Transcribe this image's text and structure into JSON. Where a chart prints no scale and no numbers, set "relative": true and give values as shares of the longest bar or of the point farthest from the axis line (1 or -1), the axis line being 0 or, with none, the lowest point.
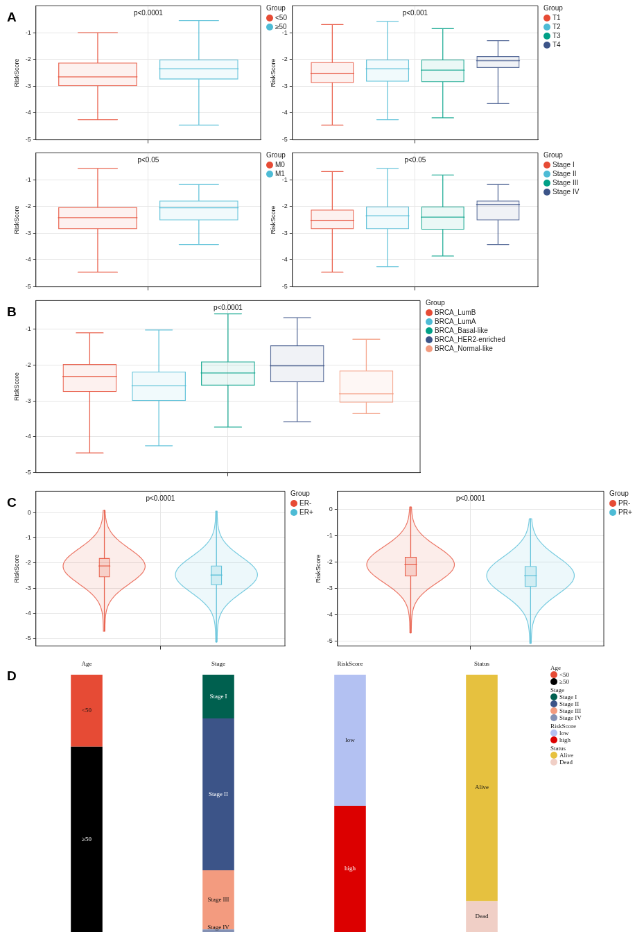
{
  "chart_data": [
    {
      "type": "box",
      "title": "p<0.0001",
      "ylabel": "RiskScore",
      "legend_title": "Group",
      "legend": "top right",
      "grid": true,
      "tick_labels": "y",
      "annotations": [
        "A"
      ],
      "categories": [
        null
      ],
      "ylim": [
        -5,
        0
      ],
      "yticks": [
        -5,
        -4,
        -3,
        -2,
        -1
      ],
      "series": [
        {
          "name": "<50",
          "color": "#e64b35",
          "boxes": [
            {
              "low": -4.25,
              "q1": -3.0,
              "median": -2.65,
              "q3": -2.12,
              "high": -1.0
            }
          ]
        },
        {
          "name": "≥50",
          "color": "#4dbbd5",
          "boxes": [
            {
              "low": -4.45,
              "q1": -2.75,
              "median": -2.35,
              "q3": -2.0,
              "high": -0.55
            }
          ]
        }
      ]
    },
    {
      "type": "box",
      "title": "p<0.001",
      "ylabel": "RiskScore",
      "legend_title": "Group",
      "legend": "top right",
      "grid": true,
      "tick_labels": "y",
      "categories": [
        null
      ],
      "ylim": [
        -5,
        0
      ],
      "yticks": [
        -5,
        -4,
        -3,
        -2,
        -1
      ],
      "series": [
        {
          "name": "T1",
          "color": "#e64b35",
          "boxes": [
            {
              "low": -4.45,
              "q1": -2.88,
              "median": -2.52,
              "q3": -2.1,
              "high": -0.7
            }
          ]
        },
        {
          "name": "T2",
          "color": "#4dbbd5",
          "boxes": [
            {
              "low": -4.25,
              "q1": -2.83,
              "median": -2.35,
              "q3": -2.0,
              "high": -0.58
            }
          ]
        },
        {
          "name": "T3",
          "color": "#00a087",
          "boxes": [
            {
              "low": -4.18,
              "q1": -2.85,
              "median": -2.4,
              "q3": -2.0,
              "high": -0.85
            }
          ]
        },
        {
          "name": "T4",
          "color": "#3c5488",
          "boxes": [
            {
              "low": -3.65,
              "q1": -2.32,
              "median": -2.05,
              "q3": -1.88,
              "high": -1.3
            }
          ]
        }
      ]
    },
    {
      "type": "box",
      "title": "p<0.05",
      "ylabel": "RiskScore",
      "legend_title": "Group",
      "legend": "top right",
      "grid": true,
      "tick_labels": "y",
      "categories": [
        null
      ],
      "ylim": [
        -5,
        0
      ],
      "yticks": [
        -5,
        -4,
        -3,
        -2,
        -1
      ],
      "series": [
        {
          "name": "M0",
          "color": "#e64b35",
          "boxes": [
            {
              "low": -4.45,
              "q1": -2.85,
              "median": -2.42,
              "q3": -2.02,
              "high": -0.58
            }
          ]
        },
        {
          "name": "M1",
          "color": "#4dbbd5",
          "boxes": [
            {
              "low": -3.42,
              "q1": -2.52,
              "median": -2.05,
              "q3": -1.78,
              "high": -1.18
            }
          ]
        }
      ]
    },
    {
      "type": "box",
      "title": "p<0.05",
      "ylabel": "RiskScore",
      "legend_title": "Group",
      "legend": "top right",
      "grid": true,
      "tick_labels": "y",
      "categories": [
        null
      ],
      "ylim": [
        -5,
        0
      ],
      "yticks": [
        -5,
        -4,
        -3,
        -2,
        -1
      ],
      "series": [
        {
          "name": "Stage I",
          "color": "#e64b35",
          "boxes": [
            {
              "low": -4.45,
              "q1": -2.85,
              "median": -2.52,
              "q3": -2.12,
              "high": -0.7
            }
          ]
        },
        {
          "name": "Stage II",
          "color": "#4dbbd5",
          "boxes": [
            {
              "low": -4.25,
              "q1": -2.85,
              "median": -2.35,
              "q3": -2.0,
              "high": -0.58
            }
          ]
        },
        {
          "name": "Stage III",
          "color": "#00a087",
          "boxes": [
            {
              "low": -3.85,
              "q1": -2.87,
              "median": -2.4,
              "q3": -2.0,
              "high": -0.83
            }
          ]
        },
        {
          "name": "Stage IV",
          "color": "#3c5488",
          "boxes": [
            {
              "low": -3.42,
              "q1": -2.52,
              "median": -1.93,
              "q3": -1.78,
              "high": -1.18
            }
          ]
        }
      ]
    },
    {
      "type": "box",
      "title": "p<0.0001",
      "ylabel": "RiskScore",
      "legend_title": "Group",
      "legend": "top right",
      "grid": true,
      "tick_labels": "y",
      "annotations": [
        "B"
      ],
      "categories": [
        null
      ],
      "ylim": [
        -5,
        -0.2
      ],
      "yticks": [
        -5,
        -4,
        -3,
        -2,
        -1
      ],
      "series": [
        {
          "name": "BRCA_LumB",
          "color": "#e64b35",
          "boxes": [
            {
              "low": -4.45,
              "q1": -2.75,
              "median": -2.32,
              "q3": -1.97,
              "high": -1.1
            }
          ]
        },
        {
          "name": "BRCA_LumA",
          "color": "#4dbbd5",
          "boxes": [
            {
              "low": -4.25,
              "q1": -3.0,
              "median": -2.58,
              "q3": -2.18,
              "high": -1.02
            }
          ]
        },
        {
          "name": "BRCA_Basal-like",
          "color": "#00a087",
          "boxes": [
            {
              "low": -3.73,
              "q1": -2.57,
              "median": -2.22,
              "q3": -1.9,
              "high": -0.57
            }
          ]
        },
        {
          "name": "BRCA_HER2-enriched",
          "color": "#3c5488",
          "boxes": [
            {
              "low": -3.58,
              "q1": -2.48,
              "median": -2.02,
              "q3": -1.45,
              "high": -0.68
            }
          ]
        },
        {
          "name": "BRCA_Normal-like",
          "color": "#f39b7f",
          "boxes": [
            {
              "low": -3.35,
              "q1": -3.05,
              "median": -2.8,
              "q3": -2.15,
              "high": -1.28
            }
          ]
        }
      ]
    },
    {
      "type": "box",
      "title": "p<0.0001",
      "ylabel": "RiskScore",
      "legend_title": "Group",
      "legend": "top right",
      "grid": true,
      "tick_labels": "y",
      "annotations": [
        "C"
      ],
      "categories": [
        null
      ],
      "ylim": [
        -5.3,
        0.85
      ],
      "yticks": [
        -5,
        -4,
        -3,
        -2,
        -1,
        0
      ],
      "series": [
        {
          "name": "ER-",
          "color": "#e64b35",
          "boxes": [
            {
              "low": -4.7,
              "q1": -2.57,
              "median": -2.12,
              "q3": -1.8,
              "high": 0.1
            }
          ]
        },
        {
          "name": "ER+",
          "color": "#4dbbd5",
          "boxes": [
            {
              "low": -5.15,
              "q1": -2.88,
              "median": -2.48,
              "q3": -2.1,
              "high": 0.05
            }
          ]
        }
      ]
    },
    {
      "type": "box",
      "title": "p<0.0001",
      "ylabel": "RiskScore",
      "legend_title": "Group",
      "legend": "top right",
      "grid": true,
      "tick_labels": "y",
      "categories": [
        null
      ],
      "ylim": [
        -5.2,
        0.7
      ],
      "yticks": [
        -5,
        -4,
        -3,
        -2,
        -1,
        0
      ],
      "series": [
        {
          "name": "PR-",
          "color": "#e64b35",
          "boxes": [
            {
              "low": -4.7,
              "q1": -2.55,
              "median": -2.1,
              "q3": -1.8,
              "high": 0.1
            }
          ]
        },
        {
          "name": "PR+",
          "color": "#4dbbd5",
          "boxes": [
            {
              "low": -5.1,
              "q1": -2.95,
              "median": -2.52,
              "q3": -2.15,
              "high": -0.35
            }
          ]
        }
      ]
    },
    {
      "type": "bar",
      "stacked": true,
      "relative": true,
      "legend": "right",
      "annotations": [
        "D"
      ],
      "categories": [
        "Age",
        "Stage",
        "RiskScore",
        "Status"
      ],
      "series": [
        {
          "name": "≥50",
          "color": "#000000",
          "values": [
            0.72,
            null,
            null,
            null
          ]
        },
        {
          "name": "<50",
          "color": "#e64b35",
          "values": [
            0.28,
            null,
            null,
            null
          ]
        },
        {
          "name": "Stage IV",
          "color": "#8491b4",
          "values": [
            null,
            0.01,
            null,
            null
          ]
        },
        {
          "name": "Stage III",
          "color": "#f39b7f",
          "values": [
            null,
            0.23,
            null,
            null
          ]
        },
        {
          "name": "Stage II",
          "color": "#3c5488",
          "values": [
            null,
            0.59,
            null,
            null
          ]
        },
        {
          "name": "Stage I",
          "color": "#00604f",
          "values": [
            null,
            0.17,
            null,
            null
          ]
        },
        {
          "name": "high",
          "color": "#dc0000",
          "values": [
            null,
            null,
            0.49,
            null
          ]
        },
        {
          "name": "low",
          "color": "#b3c1f2",
          "values": [
            null,
            null,
            0.51,
            null
          ]
        },
        {
          "name": "Dead",
          "color": "#f0cfc6",
          "values": [
            null,
            null,
            null,
            0.12
          ]
        },
        {
          "name": "Alive",
          "color": "#e6c13f",
          "values": [
            null,
            null,
            null,
            0.88
          ]
        }
      ]
    }
  ]
}
